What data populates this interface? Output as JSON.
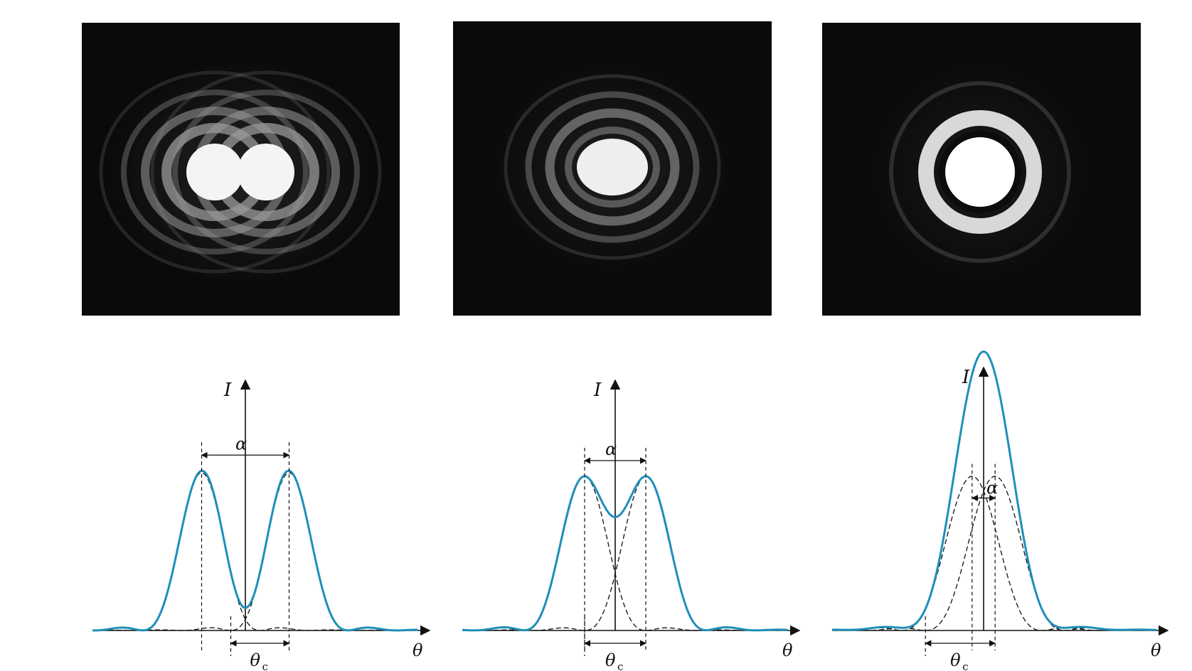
{
  "panels": [
    {
      "id": "a",
      "alpha_over_theta_c": 1.5,
      "labels": {
        "intensity": "I",
        "angle": "θ",
        "separation": "α",
        "critical": "θ",
        "critical_sub": "c"
      }
    },
    {
      "id": "b",
      "alpha_over_theta_c": 1.0,
      "labels": {
        "intensity": "I",
        "angle": "θ",
        "separation": "α",
        "critical": "θ",
        "critical_sub": "c"
      }
    },
    {
      "id": "c",
      "alpha_over_theta_c": 0.33,
      "labels": {
        "intensity": "I",
        "angle": "θ",
        "separation": "α",
        "critical": "θ",
        "critical_sub": "c"
      }
    }
  ],
  "colors": {
    "background": "#ffffff",
    "photo_background": "#0a0a0a",
    "sum_curve": "#1f8fb8",
    "component_curve": "#111111",
    "axis": "#111111"
  }
}
